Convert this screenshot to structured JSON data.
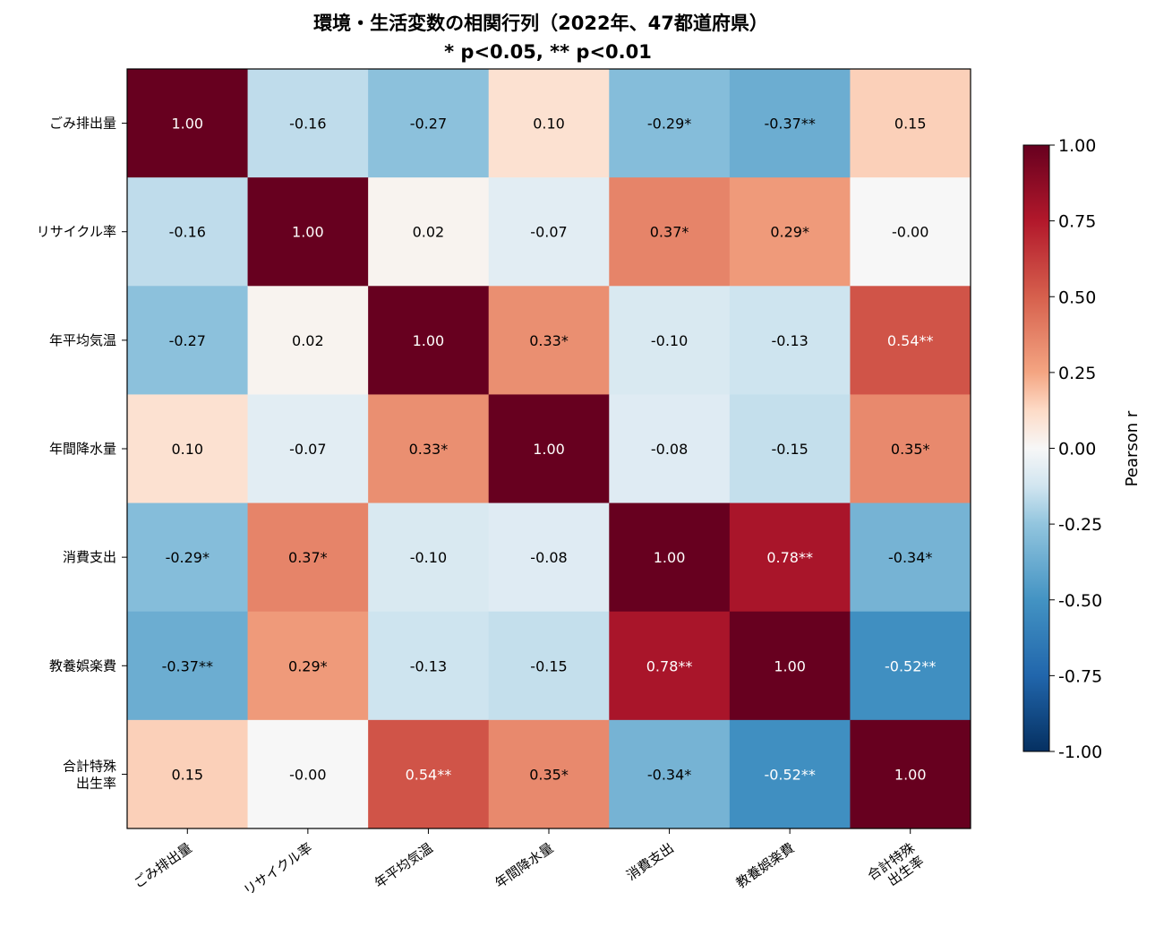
{
  "chart_data": {
    "type": "heatmap",
    "title": "環境・生活変数の相関行列（2022年、47都道府県）",
    "subtitle": "* p<0.05, ** p<0.01",
    "labels": [
      "ごみ排出量",
      "リサイクル率",
      "年平均気温",
      "年間降水量",
      "消費支出",
      "教養娯楽費",
      "合計特殊\n出生率"
    ],
    "values": [
      [
        1.0,
        -0.16,
        -0.27,
        0.1,
        -0.29,
        -0.37,
        0.15
      ],
      [
        -0.16,
        1.0,
        0.02,
        -0.07,
        0.37,
        0.29,
        -0.0
      ],
      [
        -0.27,
        0.02,
        1.0,
        0.33,
        -0.1,
        -0.13,
        0.54
      ],
      [
        0.1,
        -0.07,
        0.33,
        1.0,
        -0.08,
        -0.15,
        0.35
      ],
      [
        -0.29,
        0.37,
        -0.1,
        -0.08,
        1.0,
        0.78,
        -0.34
      ],
      [
        -0.37,
        0.29,
        -0.13,
        -0.15,
        0.78,
        1.0,
        -0.52
      ],
      [
        0.15,
        -0.0,
        0.54,
        0.35,
        -0.34,
        -0.52,
        1.0
      ]
    ],
    "cell_text": [
      [
        "1.00",
        "-0.16",
        "-0.27",
        "0.10",
        "-0.29*",
        "-0.37**",
        "0.15"
      ],
      [
        "-0.16",
        "1.00",
        "0.02",
        "-0.07",
        "0.37*",
        "0.29*",
        "-0.00"
      ],
      [
        "-0.27",
        "0.02",
        "1.00",
        "0.33*",
        "-0.10",
        "-0.13",
        "0.54**"
      ],
      [
        "0.10",
        "-0.07",
        "0.33*",
        "1.00",
        "-0.08",
        "-0.15",
        "0.35*"
      ],
      [
        "-0.29*",
        "0.37*",
        "-0.10",
        "-0.08",
        "1.00",
        "0.78**",
        "-0.34*"
      ],
      [
        "-0.37**",
        "0.29*",
        "-0.13",
        "-0.15",
        "0.78**",
        "1.00",
        "-0.52**"
      ],
      [
        "0.15",
        "-0.00",
        "0.54**",
        "0.35*",
        "-0.34*",
        "-0.52**",
        "1.00"
      ]
    ],
    "colormap": "RdBu_r",
    "vmin": -1.0,
    "vmax": 1.0,
    "colorbar": {
      "label": "Pearson r",
      "ticks": [
        "1.00",
        "0.75",
        "0.50",
        "0.25",
        "0.00",
        "-0.25",
        "-0.50",
        "-0.75",
        "-1.00"
      ]
    },
    "colormap_stops": [
      {
        "v": -1.0,
        "c": "#053061"
      },
      {
        "v": -0.75,
        "c": "#2166ac"
      },
      {
        "v": -0.5,
        "c": "#4393c3"
      },
      {
        "v": -0.25,
        "c": "#92c5de"
      },
      {
        "v": -0.125,
        "c": "#d1e5f0"
      },
      {
        "v": 0.0,
        "c": "#f7f7f7"
      },
      {
        "v": 0.125,
        "c": "#fddbc7"
      },
      {
        "v": 0.25,
        "c": "#f4a582"
      },
      {
        "v": 0.5,
        "c": "#d6604d"
      },
      {
        "v": 0.75,
        "c": "#b2182b"
      },
      {
        "v": 1.0,
        "c": "#67001f"
      }
    ]
  }
}
